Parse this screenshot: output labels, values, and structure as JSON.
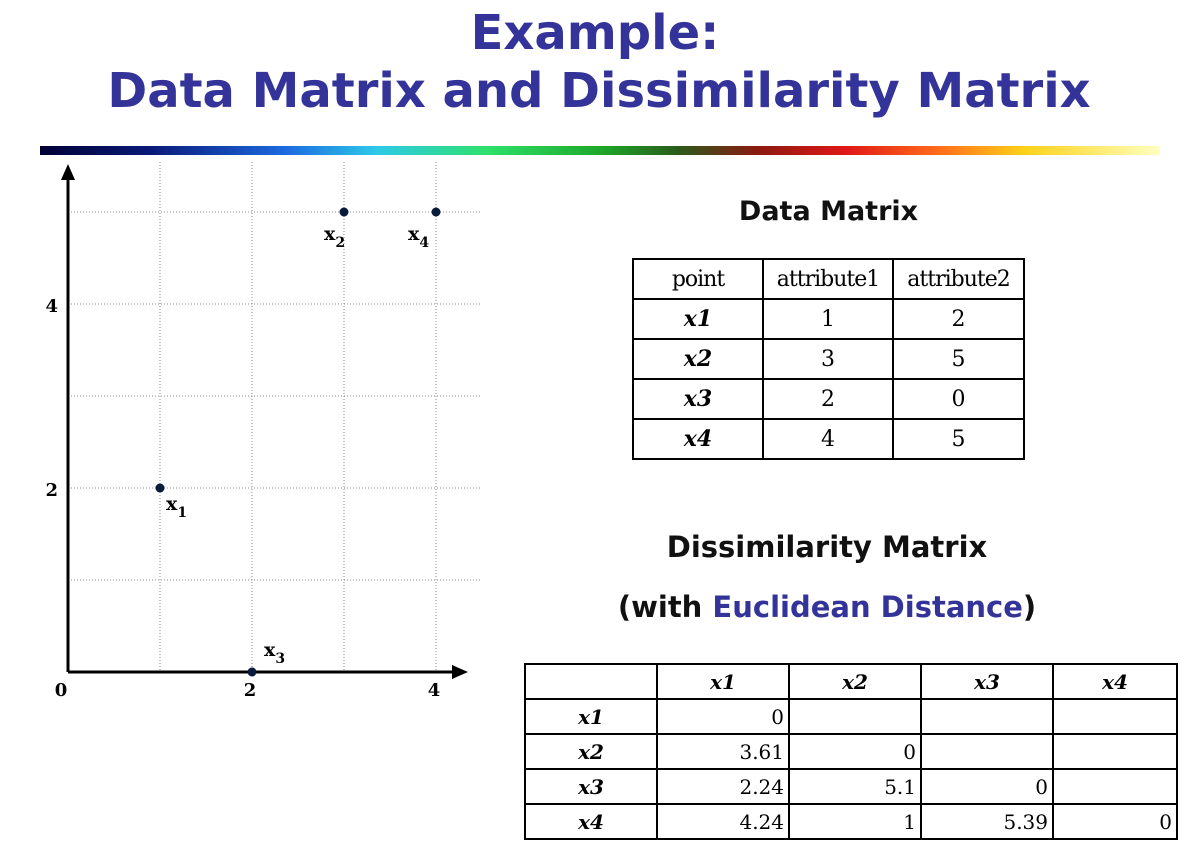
{
  "title": {
    "line1": "Example:",
    "line2": "Data Matrix and Dissimilarity Matrix"
  },
  "chart_data": {
    "type": "scatter",
    "xlim": [
      0,
      4.4
    ],
    "ylim": [
      0,
      5.4
    ],
    "x_ticks": [
      0,
      2,
      4
    ],
    "y_ticks": [
      2,
      4
    ],
    "origin_label": "0",
    "grid": true,
    "points": [
      {
        "label": "x",
        "sub": "1",
        "x": 1,
        "y": 2
      },
      {
        "label": "x",
        "sub": "2",
        "x": 3,
        "y": 5
      },
      {
        "label": "x",
        "sub": "3",
        "x": 2,
        "y": 0
      },
      {
        "label": "x",
        "sub": "4",
        "x": 4,
        "y": 5
      }
    ]
  },
  "data_matrix": {
    "heading": "Data Matrix",
    "columns": [
      "point",
      "attribute1",
      "attribute2"
    ],
    "rows": [
      {
        "point": "x1",
        "attribute1": "1",
        "attribute2": "2"
      },
      {
        "point": "x2",
        "attribute1": "3",
        "attribute2": "5"
      },
      {
        "point": "x3",
        "attribute1": "2",
        "attribute2": "0"
      },
      {
        "point": "x4",
        "attribute1": "4",
        "attribute2": "5"
      }
    ]
  },
  "dissimilarity_matrix": {
    "heading": "Dissimilarity Matrix",
    "subheading_prefix": "(with ",
    "subheading_highlight": "Euclidean Distance",
    "subheading_suffix": ")",
    "highlight_color": "#333399",
    "columns": [
      "",
      "x1",
      "x2",
      "x3",
      "x4"
    ],
    "rows": [
      {
        "label": "x1",
        "values": [
          "0",
          "",
          "",
          ""
        ]
      },
      {
        "label": "x2",
        "values": [
          "3.61",
          "0",
          "",
          ""
        ]
      },
      {
        "label": "x3",
        "values": [
          "2.24",
          "5.1",
          "0",
          ""
        ]
      },
      {
        "label": "x4",
        "values": [
          "4.24",
          "1",
          "5.39",
          "0"
        ]
      }
    ]
  }
}
